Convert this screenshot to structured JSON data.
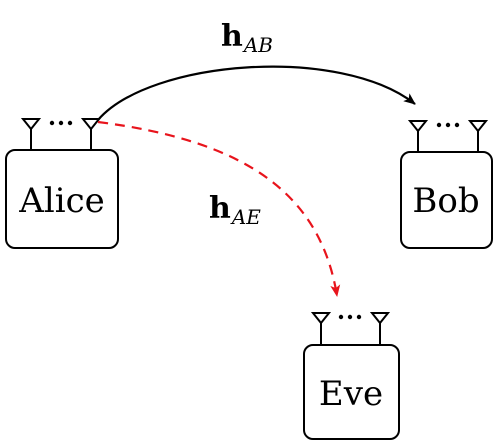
{
  "nodes": {
    "alice": {
      "label": "Alice"
    },
    "bob": {
      "label": "Bob"
    },
    "eve": {
      "label": "Eve"
    }
  },
  "links": {
    "ab": {
      "symbol": "h",
      "subscript": "AB",
      "color": "#000000",
      "style": "solid"
    },
    "ae": {
      "symbol": "h",
      "subscript": "AE",
      "color": "#e8141c",
      "style": "dashed"
    }
  }
}
